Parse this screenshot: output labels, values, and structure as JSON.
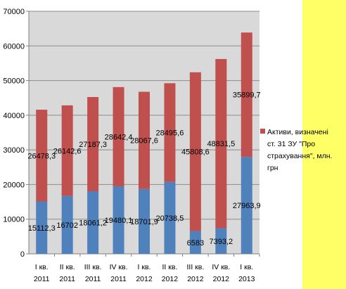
{
  "chart_data": {
    "type": "bar",
    "stacked": true,
    "title": "",
    "xlabel": "",
    "ylabel": "",
    "categories": [
      [
        "I кв.",
        "2011"
      ],
      [
        "II кв.",
        "2011"
      ],
      [
        "III кв.",
        "2011"
      ],
      [
        "IV кв.",
        "2011"
      ],
      [
        "I кв.",
        "2012"
      ],
      [
        "II кв.",
        "2012"
      ],
      [
        "III кв.",
        "2012"
      ],
      [
        "IV кв.",
        "2012"
      ],
      [
        "I кв.",
        "2013"
      ]
    ],
    "series": [
      {
        "color": "#4f81bd",
        "values": [
          15112.3,
          16702,
          18061.2,
          19480.1,
          18701.9,
          20738.5,
          6583,
          7393.2,
          27963.9
        ],
        "labels": [
          "15112,3",
          "16702",
          "18061,2",
          "19480,1",
          "18701,9",
          "20738,5",
          "6583",
          "7393,2",
          "27963,9"
        ]
      },
      {
        "name": "Активи, визначені ст. 31 ЗУ \"Про страхування\", млн. грн",
        "color": "#c0504d",
        "values": [
          26478.3,
          26142.6,
          27187.3,
          28642.4,
          28067.6,
          28495.6,
          45808.6,
          48831.5,
          35899.7
        ],
        "labels": [
          "26478,3",
          "26142,6",
          "27187,3",
          "28642,4",
          "28067,6",
          "28495,6",
          "45808,6",
          "48831,5",
          "35899,7"
        ]
      }
    ],
    "ylim": [
      0,
      70000
    ],
    "yticks": [
      0,
      10000,
      20000,
      30000,
      40000,
      50000,
      60000,
      70000
    ],
    "grid": true,
    "legend": {
      "position": "right",
      "lines": [
        "Активи, визначені",
        "ст. 31 ЗУ \"Про",
        "страхування\", млн.",
        "грн"
      ]
    },
    "colors": {
      "plot_background": "#d9d9d9",
      "gridline": "#8c8c8c",
      "right_strip": "#ffff66"
    }
  }
}
